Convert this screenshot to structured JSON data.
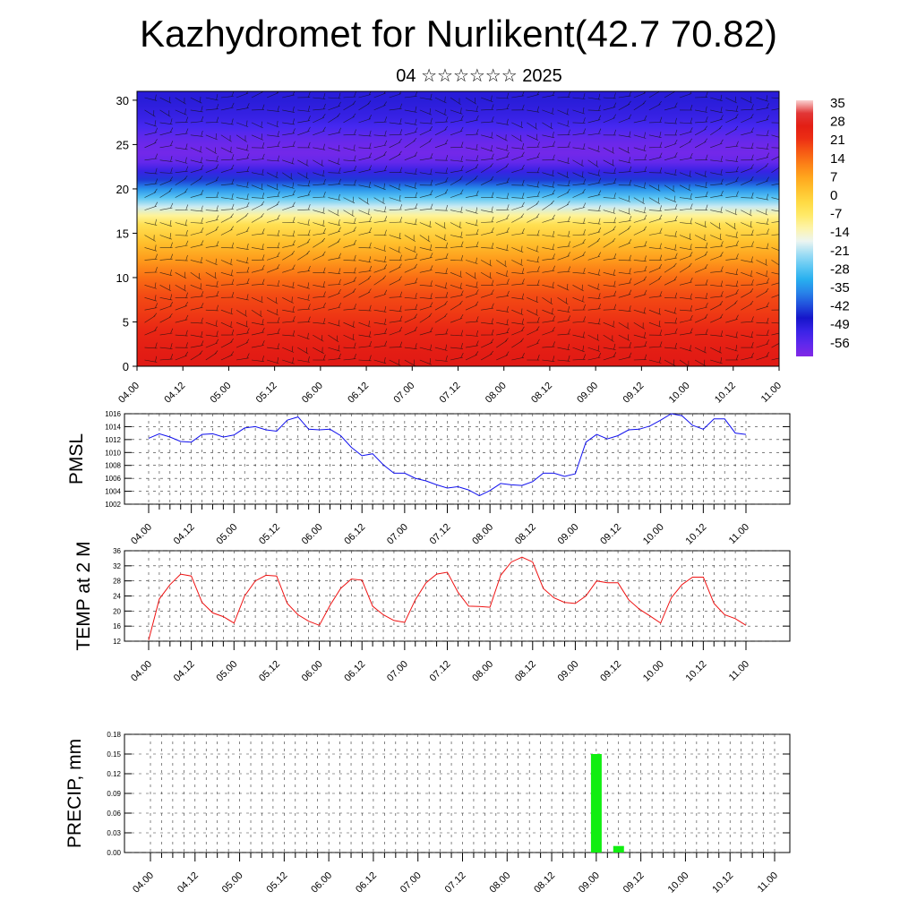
{
  "header": {
    "title": "Kazhydromet for Nurlikent(42.7 70.82)",
    "subtitle": "04 ☆☆☆☆☆☆ 2025"
  },
  "chart_data": [
    {
      "type": "heatmap",
      "name": "vertical-section",
      "x_ticks": [
        "04.00",
        "04.12",
        "05.00",
        "05.12",
        "06.00",
        "06.12",
        "07.00",
        "07.12",
        "08.00",
        "08.12",
        "09.00",
        "09.12",
        "10.00",
        "10.12",
        "11.00"
      ],
      "y_ticks": [
        0,
        5,
        10,
        15,
        20,
        25,
        30
      ],
      "ylim": [
        0,
        31
      ],
      "colorbar_labels": [
        "35",
        "28",
        "21",
        "14",
        "7",
        "0",
        "-7",
        "-14",
        "-21",
        "-28",
        "-35",
        "-42",
        "-49",
        "-56"
      ],
      "colorbar_range": [
        -60,
        38
      ],
      "profile": {
        "levels": [
          0,
          2,
          4,
          6,
          8,
          10,
          12,
          14,
          16,
          17,
          18,
          19,
          20,
          21,
          22,
          23,
          24,
          25,
          26,
          27,
          28,
          29,
          30,
          31
        ],
        "values": [
          30,
          28,
          25,
          22,
          20,
          16,
          10,
          4,
          -3,
          -10,
          -18,
          -26,
          -34,
          -42,
          -50,
          -56,
          -58,
          -57,
          -55,
          -52,
          -50,
          -49,
          -48,
          -48
        ]
      },
      "wind_barbs": true
    },
    {
      "type": "line",
      "name": "pmsl",
      "ylabel": "PMSL",
      "ylim": [
        1002,
        1016
      ],
      "y_ticks": [
        1002,
        1004,
        1006,
        1008,
        1010,
        1012,
        1014,
        1016
      ],
      "x_ticks": [
        "04.00",
        "04.12",
        "05.00",
        "05.12",
        "06.00",
        "06.12",
        "07.00",
        "07.12",
        "08.00",
        "08.12",
        "09.00",
        "09.12",
        "10.00",
        "10.12",
        "11.00"
      ],
      "color": "#1010ee",
      "x": [
        0,
        0.125,
        0.25,
        0.375,
        0.5,
        0.625,
        0.75,
        0.875,
        1,
        1.125,
        1.25,
        1.375,
        1.5,
        1.625,
        1.75,
        1.875,
        2,
        2.125,
        2.25,
        2.375,
        2.5,
        2.625,
        2.75,
        2.875,
        3,
        3.125,
        3.25,
        3.375,
        3.5,
        3.625,
        3.75,
        3.875,
        4,
        4.125,
        4.25,
        4.375,
        4.5,
        4.625,
        4.75,
        4.875,
        5,
        5.125,
        5.25,
        5.375,
        5.5,
        5.625,
        5.75,
        5.875,
        6,
        6.125,
        6.25,
        6.375,
        6.5,
        6.625,
        6.75,
        6.875,
        7
      ],
      "values": [
        1012.2,
        1012.9,
        1012.4,
        1011.7,
        1011.6,
        1012.8,
        1012.9,
        1012.4,
        1012.7,
        1013.8,
        1014.0,
        1013.5,
        1013.3,
        1015.0,
        1015.5,
        1013.6,
        1013.5,
        1013.6,
        1012.6,
        1010.8,
        1009.5,
        1009.8,
        1008.1,
        1006.8,
        1006.8,
        1006.0,
        1005.6,
        1005.0,
        1004.5,
        1004.7,
        1004.2,
        1003.3,
        1004.1,
        1005.2,
        1005.0,
        1004.9,
        1005.5,
        1006.8,
        1006.8,
        1006.3,
        1006.7,
        1011.6,
        1012.8,
        1012.1,
        1012.6,
        1013.5,
        1013.6,
        1014.1,
        1015.0,
        1016.0,
        1015.7,
        1014.2,
        1013.6,
        1015.2,
        1015.2,
        1013.0,
        1012.8
      ]
    },
    {
      "type": "line",
      "name": "temp2m",
      "ylabel": "TEMP at 2 M",
      "ylim": [
        12,
        36
      ],
      "y_ticks": [
        12,
        16,
        20,
        24,
        28,
        32,
        36
      ],
      "x_ticks": [
        "04.00",
        "04.12",
        "05.00",
        "05.12",
        "06.00",
        "06.12",
        "07.00",
        "07.12",
        "08.00",
        "08.12",
        "09.00",
        "09.12",
        "10.00",
        "10.12",
        "11.00"
      ],
      "color": "#ee1111",
      "x": [
        0,
        0.125,
        0.25,
        0.375,
        0.5,
        0.625,
        0.75,
        0.875,
        1,
        1.125,
        1.25,
        1.375,
        1.5,
        1.625,
        1.75,
        1.875,
        2,
        2.125,
        2.25,
        2.375,
        2.5,
        2.625,
        2.75,
        2.875,
        3,
        3.125,
        3.25,
        3.375,
        3.5,
        3.625,
        3.75,
        3.875,
        4,
        4.125,
        4.25,
        4.375,
        4.5,
        4.625,
        4.75,
        4.875,
        5,
        5.125,
        5.25,
        5.375,
        5.5,
        5.625,
        5.75,
        5.875,
        6,
        6.125,
        6.25,
        6.375,
        6.5,
        6.625,
        6.75,
        6.875,
        7
      ],
      "values": [
        12.3,
        23.2,
        27.0,
        29.8,
        29.3,
        22.3,
        19.5,
        18.5,
        16.8,
        24.0,
        28.0,
        29.5,
        29.3,
        22.0,
        19.0,
        17.3,
        16.2,
        21.5,
        26.0,
        28.5,
        28.2,
        21.3,
        19.0,
        17.5,
        17.0,
        23.0,
        27.5,
        29.8,
        30.3,
        25.0,
        21.3,
        21.2,
        21.0,
        29.5,
        33.0,
        34.3,
        33.0,
        26.0,
        23.5,
        22.3,
        22.0,
        24.0,
        28.0,
        27.5,
        27.5,
        23.0,
        20.5,
        18.7,
        16.8,
        23.5,
        27.0,
        29.0,
        29.0,
        22.0,
        19.0,
        18.0,
        16.2
      ]
    },
    {
      "type": "bar",
      "name": "precip",
      "ylabel": "PRECIP, mm",
      "ylim": [
        0,
        0.18
      ],
      "y_ticks": [
        "0.00",
        "0.03",
        "0.06",
        "0.09",
        "0.12",
        "0.15",
        "0.18"
      ],
      "x_ticks": [
        "04.00",
        "04.12",
        "05.00",
        "05.12",
        "06.00",
        "06.12",
        "07.00",
        "07.12",
        "08.00",
        "08.12",
        "09.00",
        "09.12",
        "10.00",
        "10.12",
        "11.00"
      ],
      "color": "#11ee11",
      "bars": [
        {
          "x": 5.0,
          "value": 0.15
        },
        {
          "x": 5.25,
          "value": 0.01
        }
      ]
    }
  ]
}
